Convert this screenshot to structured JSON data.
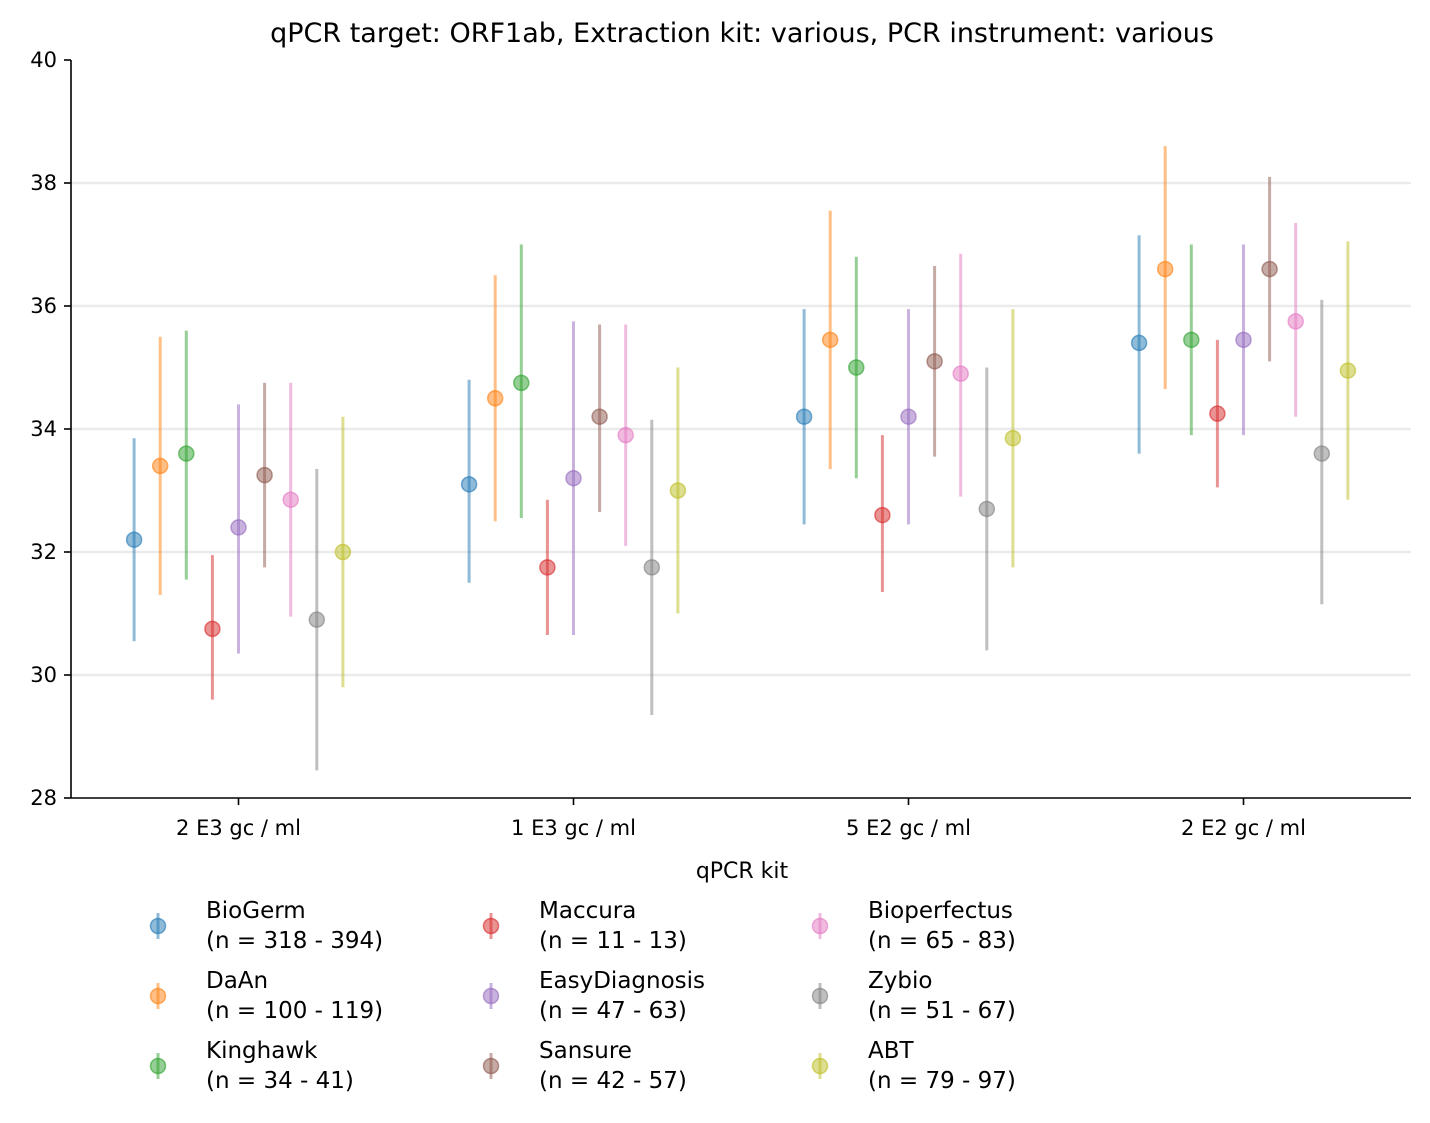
{
  "chart_data": {
    "type": "errorbar",
    "title": "qPCR target: ORF1ab, Extraction kit: various, PCR instrument: various",
    "xlabel": "qPCR kit",
    "ylabel": "",
    "ylim": [
      28,
      40
    ],
    "yticks": [
      "28",
      "30",
      "32",
      "34",
      "36",
      "38",
      "40"
    ],
    "grid": "horizontal",
    "legend_position": "bottom",
    "categories": [
      "2 E3 gc / ml",
      "1 E3 gc / ml",
      "5 E2 gc / ml",
      "2 E2 gc / ml"
    ],
    "series": [
      {
        "name": "BioGerm",
        "n_label": "(n = 318 - 394)",
        "color": "#1f77b4",
        "mean": [
          32.2,
          33.1,
          34.2,
          35.4
        ],
        "lower": [
          30.55,
          31.5,
          32.45,
          33.6
        ],
        "upper": [
          33.85,
          34.8,
          35.95,
          37.15
        ]
      },
      {
        "name": "DaAn",
        "n_label": "(n = 100 - 119)",
        "color": "#ff7f0e",
        "mean": [
          33.4,
          34.5,
          35.45,
          36.6
        ],
        "lower": [
          31.3,
          32.5,
          33.35,
          34.65
        ],
        "upper": [
          35.5,
          36.5,
          37.55,
          38.6
        ]
      },
      {
        "name": "Kinghawk",
        "n_label": "(n = 34 - 41)",
        "color": "#2ca02c",
        "mean": [
          33.6,
          34.75,
          35.0,
          35.45
        ],
        "lower": [
          31.55,
          32.55,
          33.2,
          33.9
        ],
        "upper": [
          35.6,
          37.0,
          36.8,
          37.0
        ]
      },
      {
        "name": "Maccura",
        "n_label": "(n = 11 - 13)",
        "color": "#d62728",
        "mean": [
          30.75,
          31.75,
          32.6,
          34.25
        ],
        "lower": [
          29.6,
          30.65,
          31.35,
          33.05
        ],
        "upper": [
          31.95,
          32.85,
          33.9,
          35.45
        ]
      },
      {
        "name": "EasyDiagnosis",
        "n_label": "(n = 47 - 63)",
        "color": "#9467bd",
        "mean": [
          32.4,
          33.2,
          34.2,
          35.45
        ],
        "lower": [
          30.35,
          30.65,
          32.45,
          33.9
        ],
        "upper": [
          34.4,
          35.75,
          35.95,
          37.0
        ]
      },
      {
        "name": "Sansure",
        "n_label": "(n = 42 - 57)",
        "color": "#8c564b",
        "mean": [
          33.25,
          34.2,
          35.1,
          36.6
        ],
        "lower": [
          31.75,
          32.65,
          33.55,
          35.1
        ],
        "upper": [
          34.75,
          35.7,
          36.65,
          38.1
        ]
      },
      {
        "name": "Bioperfectus",
        "n_label": "(n = 65 - 83)",
        "color": "#e377c2",
        "mean": [
          32.85,
          33.9,
          34.9,
          35.75
        ],
        "lower": [
          30.95,
          32.1,
          32.9,
          34.2
        ],
        "upper": [
          34.75,
          35.7,
          36.85,
          37.35
        ]
      },
      {
        "name": "Zybio",
        "n_label": "(n = 51 - 67)",
        "color": "#7f7f7f",
        "mean": [
          30.9,
          31.75,
          32.7,
          33.6
        ],
        "lower": [
          28.45,
          29.35,
          30.4,
          31.15
        ],
        "upper": [
          33.35,
          34.15,
          35.0,
          36.1
        ]
      },
      {
        "name": "ABT",
        "n_label": "(n = 79 - 97)",
        "color": "#bcbd22",
        "mean": [
          32.0,
          33.0,
          33.85,
          34.95
        ],
        "lower": [
          29.8,
          31.0,
          31.75,
          32.85
        ],
        "upper": [
          34.2,
          35.0,
          35.95,
          37.05
        ]
      }
    ]
  }
}
